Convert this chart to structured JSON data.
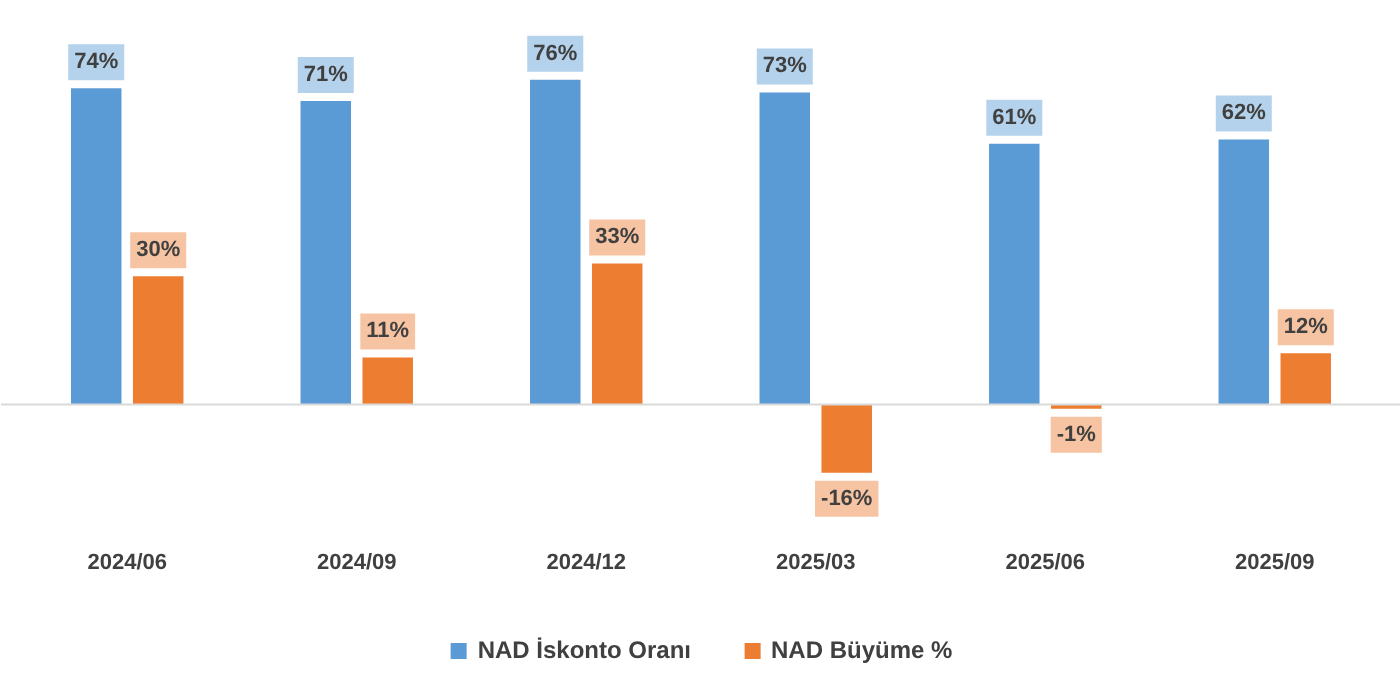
{
  "chart_data": {
    "type": "bar",
    "categories": [
      "2024/06",
      "2024/09",
      "2024/12",
      "2025/03",
      "2025/06",
      "2025/09"
    ],
    "series": [
      {
        "name": "NAD İskonto Oranı",
        "color": "#5b9bd5",
        "values": [
          74,
          71,
          76,
          73,
          61,
          62
        ],
        "value_labels": [
          "74%",
          "71%",
          "76%",
          "73%",
          "61%",
          "62%"
        ]
      },
      {
        "name": "NAD Büyüme %",
        "color": "#ed7d31",
        "values": [
          30,
          11,
          33,
          -16,
          -1,
          12
        ],
        "value_labels": [
          "30%",
          "11%",
          "33%",
          "-16%",
          "-1%",
          "12%"
        ]
      }
    ],
    "legend": "bottom"
  }
}
